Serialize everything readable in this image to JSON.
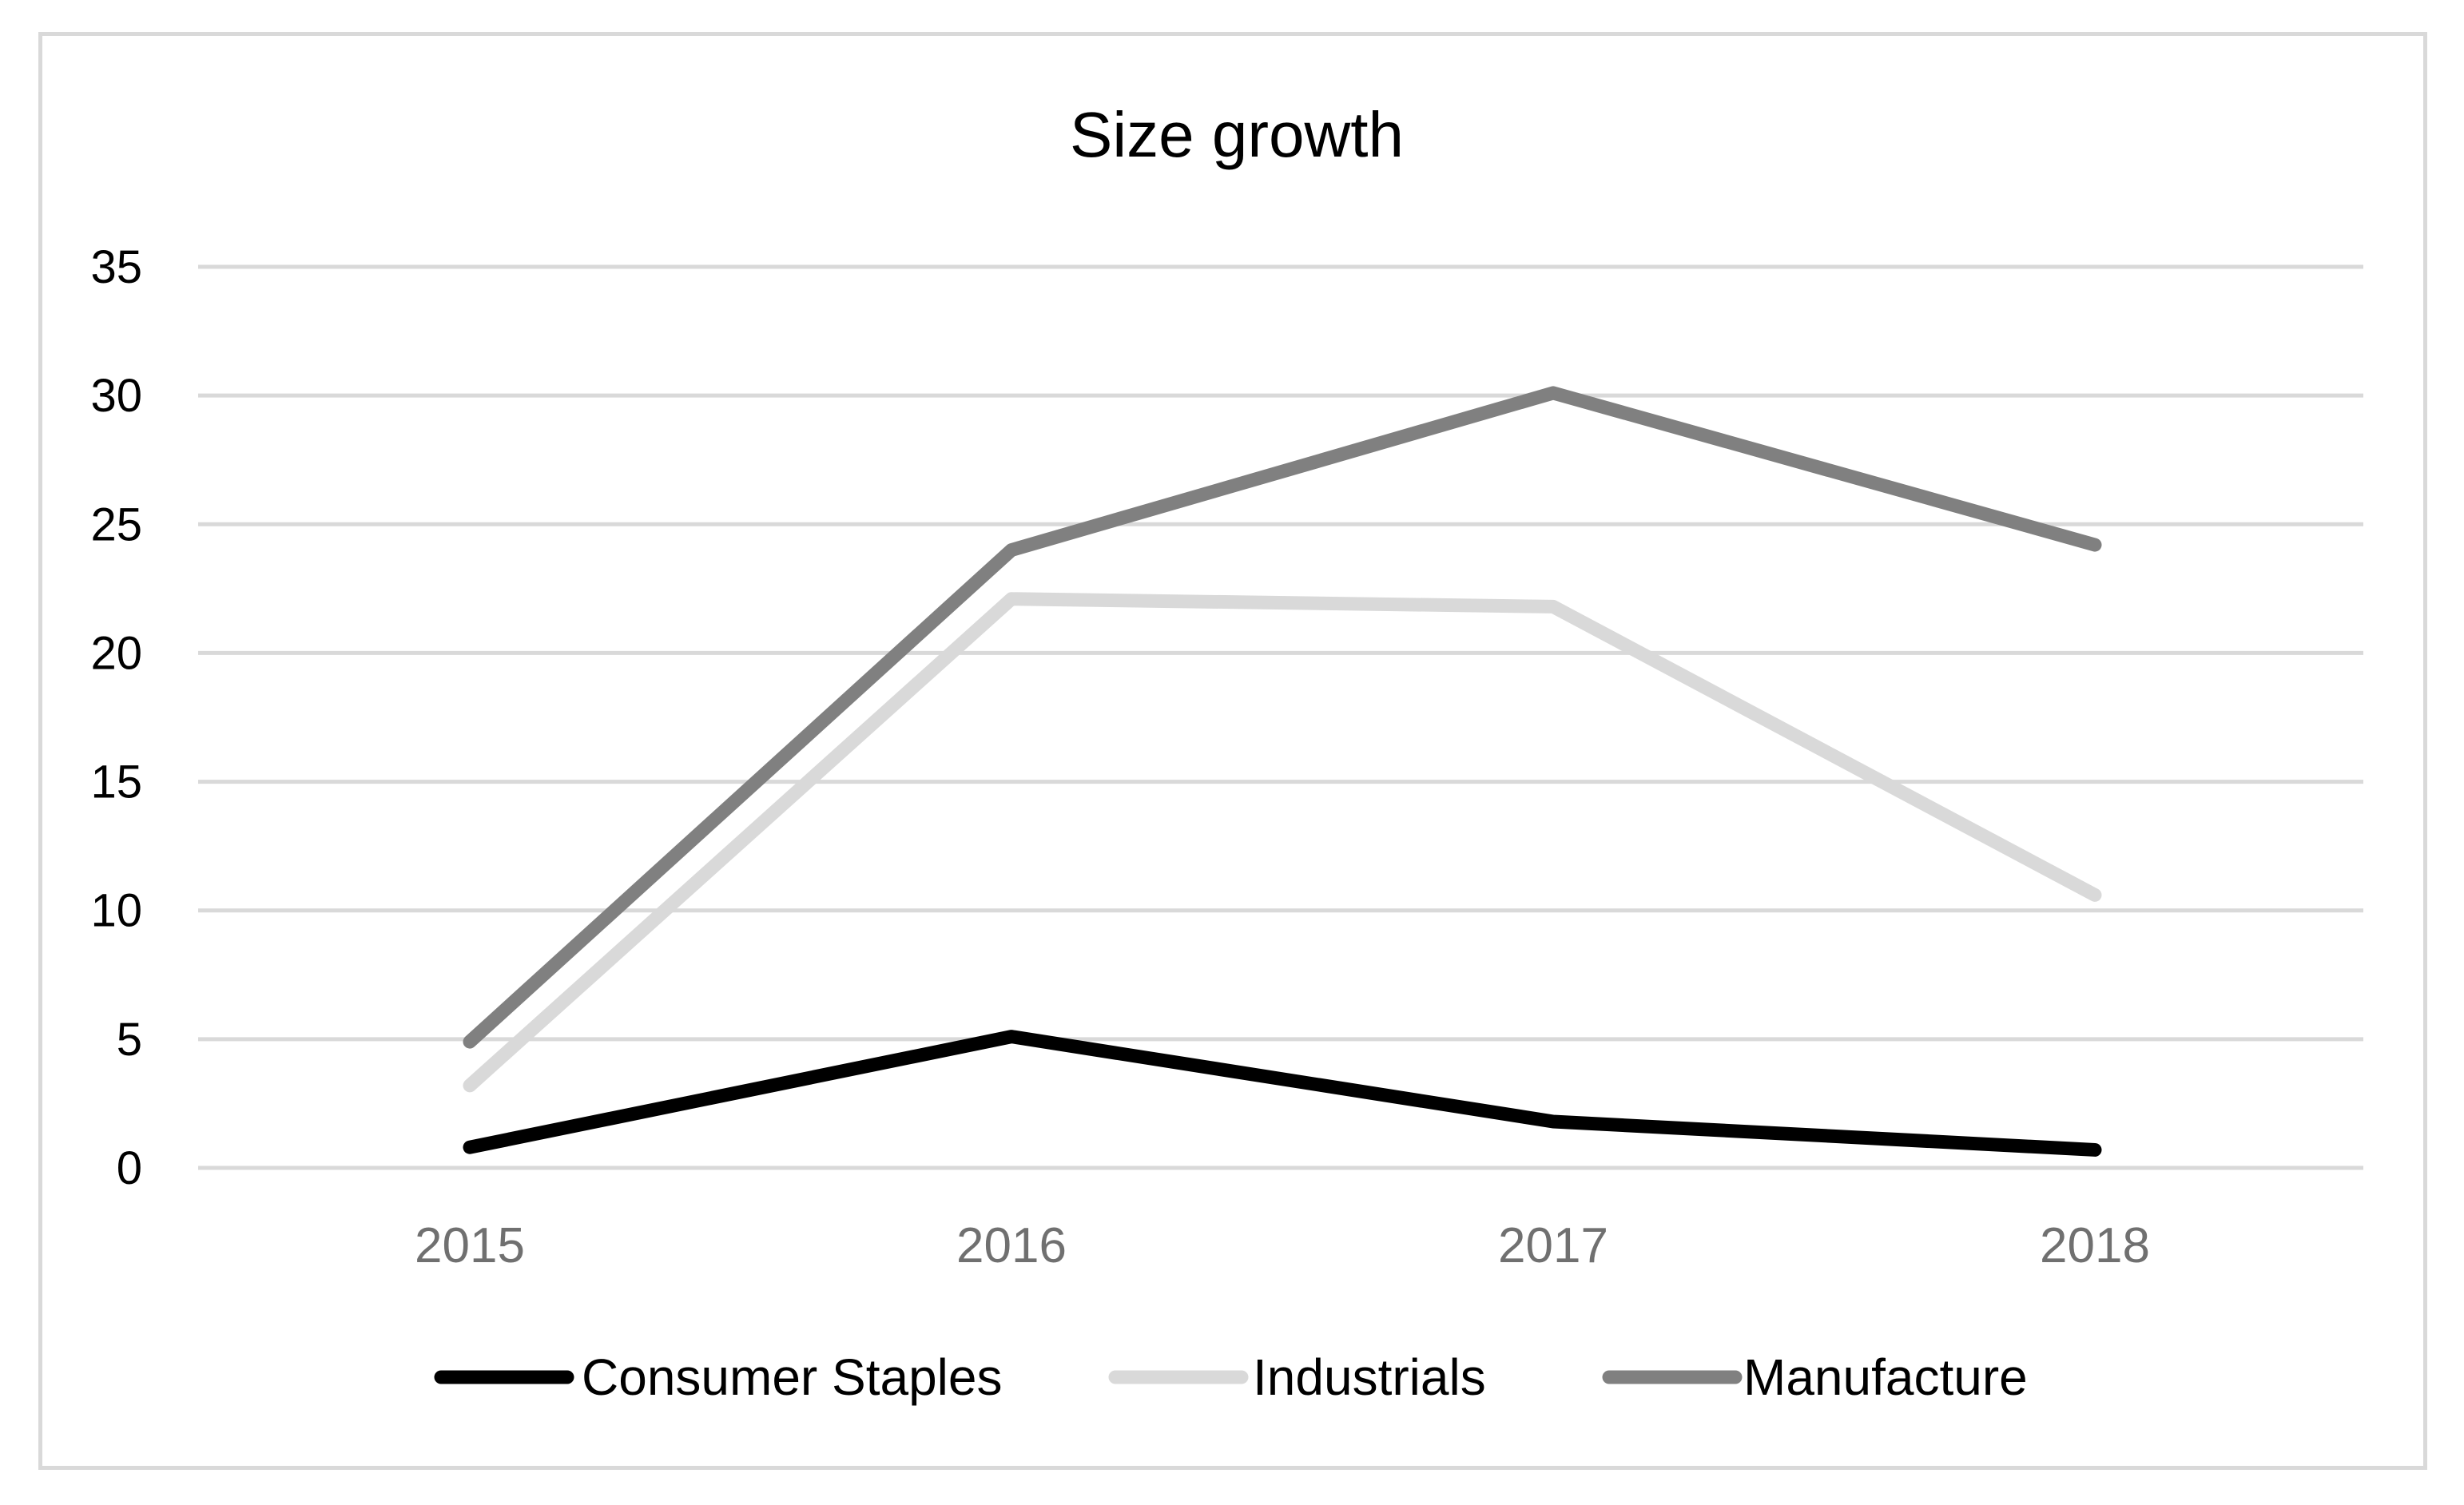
{
  "chart_data": {
    "type": "line",
    "title": "Size growth",
    "xlabel": "",
    "ylabel": "",
    "categories": [
      "2015",
      "2016",
      "2017",
      "2018"
    ],
    "yticks": [
      "0",
      "5",
      "10",
      "15",
      "20",
      "25",
      "30",
      "35"
    ],
    "ylim": [
      0,
      35
    ],
    "grid": true,
    "legend_position": "bottom",
    "series": [
      {
        "name": "Consumer Staples",
        "color": "#000000",
        "values": [
          0.8,
          5.1,
          1.8,
          0.7
        ]
      },
      {
        "name": "Industrials",
        "color": "#d9d9d9",
        "values": [
          3.2,
          22.1,
          21.8,
          10.6
        ]
      },
      {
        "name": "Manufacture",
        "color": "#808080",
        "values": [
          4.9,
          24.0,
          30.1,
          24.2
        ]
      }
    ]
  }
}
